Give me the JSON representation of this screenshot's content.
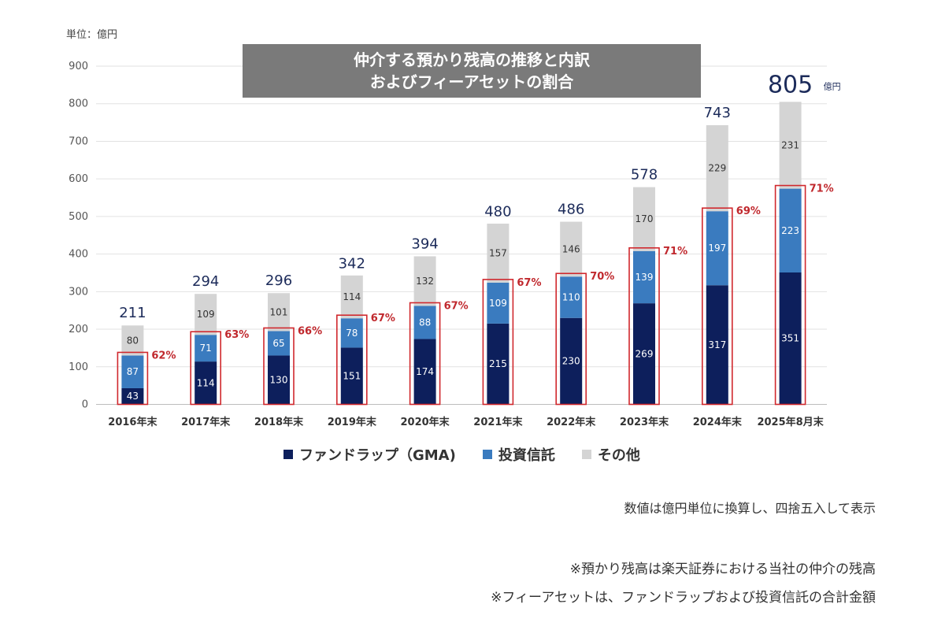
{
  "unit_label": "単位：億円",
  "title_lines": [
    "仲介する預かり残高の推移と内訳",
    "およびフィーアセットの割合"
  ],
  "notes": [
    "数値は億円単位に換算し、四捨五入して表示",
    "※預かり残高は楽天証券における当社の仲介の残高",
    "※フィーアセットは、ファンドラップおよび投資信託の合計金額"
  ],
  "chart_data": {
    "type": "bar",
    "stacked": true,
    "title": "仲介する預かり残高の推移と内訳 およびフィーアセットの割合",
    "ylabel": "",
    "ylim": [
      0,
      900
    ],
    "yticks": [
      0,
      100,
      200,
      300,
      400,
      500,
      600,
      700,
      800,
      900
    ],
    "grid": true,
    "categories": [
      "2016年末",
      "2017年末",
      "2018年末",
      "2019年末",
      "2020年末",
      "2021年末",
      "2022年末",
      "2023年末",
      "2024年末",
      "2025年8月末"
    ],
    "series": [
      {
        "name": "ファンドラップ（GMA)",
        "color": "#0d1f5c",
        "values": [
          43,
          114,
          130,
          151,
          174,
          215,
          230,
          269,
          317,
          351
        ]
      },
      {
        "name": "投資信託",
        "color": "#3a7bbf",
        "values": [
          87,
          71,
          65,
          78,
          88,
          109,
          110,
          139,
          197,
          223
        ]
      },
      {
        "name": "その他",
        "color": "#d4d4d4",
        "values": [
          80,
          109,
          101,
          114,
          132,
          157,
          146,
          170,
          229,
          231
        ]
      }
    ],
    "totals": [
      211,
      294,
      296,
      342,
      394,
      480,
      486,
      578,
      743,
      805
    ],
    "total_unit": "億円",
    "fee_asset_ratio": [
      "62%",
      "63%",
      "66%",
      "67%",
      "67%",
      "67%",
      "70%",
      "71%",
      "69%",
      "71%"
    ],
    "highlight_color": "#d0282d"
  }
}
